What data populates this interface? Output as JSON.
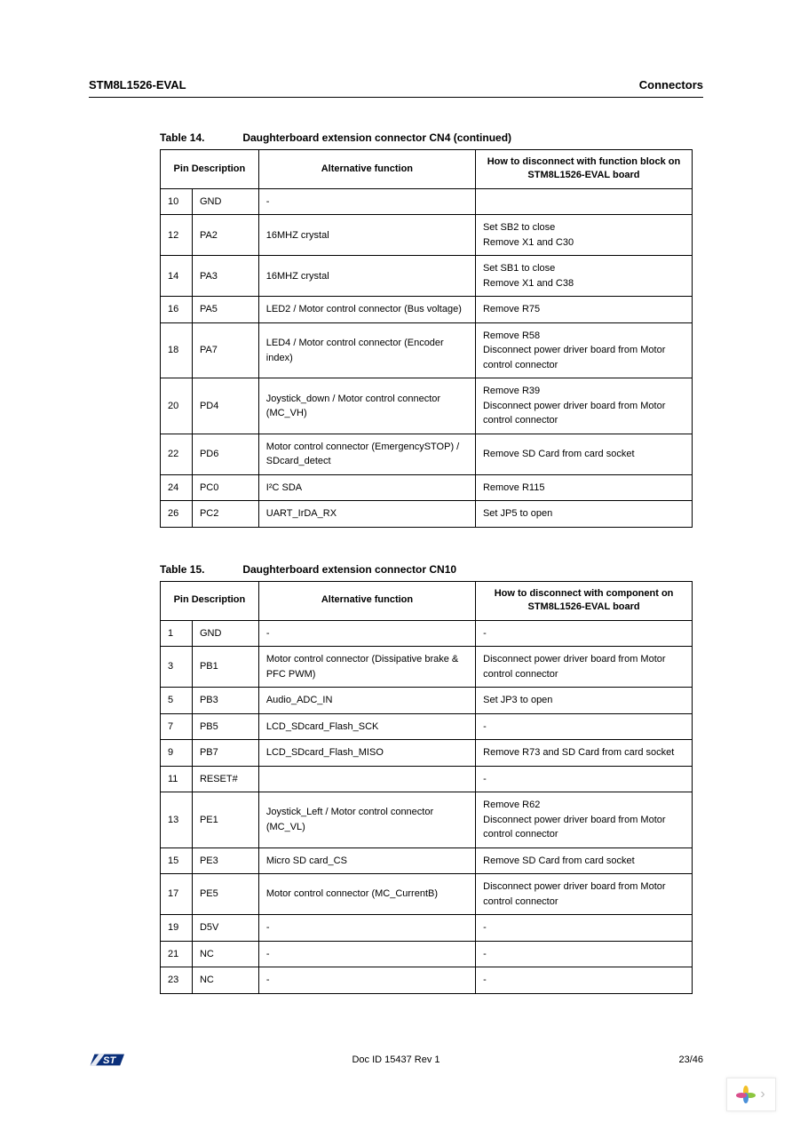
{
  "header": {
    "left": "STM8L1526-EVAL",
    "right": "Connectors"
  },
  "table14": {
    "caption_num": "Table 14.",
    "caption_title": "Daughterboard extension connector CN4 (continued)",
    "headers": {
      "pin_desc": "Pin Description",
      "alt": "Alternative    function",
      "how": "How to disconnect with function block on STM8L1526-EVAL board"
    },
    "rows": [
      {
        "pin": "10",
        "desc": "GND",
        "alt": "-",
        "how": ""
      },
      {
        "pin": "12",
        "desc": "PA2",
        "alt": "16MHZ crystal",
        "how": "Set SB2 to close\nRemove X1 and C30"
      },
      {
        "pin": "14",
        "desc": "PA3",
        "alt": "16MHZ crystal",
        "how": "Set SB1 to close\nRemove X1 and C38"
      },
      {
        "pin": "16",
        "desc": "PA5",
        "alt": "LED2 / Motor control connector (Bus voltage)",
        "how": "Remove R75"
      },
      {
        "pin": "18",
        "desc": "PA7",
        "alt": "LED4 / Motor control connector (Encoder index)",
        "how": "Remove R58\nDisconnect power driver board from Motor control connector"
      },
      {
        "pin": "20",
        "desc": "PD4",
        "alt": "Joystick_down / Motor control connector (MC_VH)",
        "how": "Remove R39\nDisconnect power driver board from Motor control connector"
      },
      {
        "pin": "22",
        "desc": "PD6",
        "alt": "Motor control connector (EmergencySTOP) / SDcard_detect",
        "how": "Remove SD Card from card socket"
      },
      {
        "pin": "24",
        "desc": "PC0",
        "alt": "I²C SDA",
        "how": "Remove R115"
      },
      {
        "pin": "26",
        "desc": "PC2",
        "alt": "UART_IrDA_RX",
        "how": "Set JP5 to open"
      }
    ]
  },
  "table15": {
    "caption_num": "Table 15.",
    "caption_title": "Daughterboard extension connector CN10",
    "headers": {
      "pin_desc": "Pin Description",
      "alt": "Alternative    function",
      "how": "How to disconnect with component on STM8L1526-EVAL board"
    },
    "rows": [
      {
        "pin": "1",
        "desc": "GND",
        "alt": "-",
        "how": "-"
      },
      {
        "pin": "3",
        "desc": "PB1",
        "alt": "Motor control connector (Dissipative brake & PFC PWM)",
        "how": "Disconnect power driver board from Motor control connector"
      },
      {
        "pin": "5",
        "desc": "PB3",
        "alt": "Audio_ADC_IN",
        "how": "Set JP3 to open"
      },
      {
        "pin": "7",
        "desc": "PB5",
        "alt": "LCD_SDcard_Flash_SCK",
        "how": "-"
      },
      {
        "pin": "9",
        "desc": "PB7",
        "alt": "LCD_SDcard_Flash_MISO",
        "how": "Remove R73 and SD Card from card socket"
      },
      {
        "pin": "11",
        "desc": "RESET#",
        "alt": "",
        "how": "-"
      },
      {
        "pin": "13",
        "desc": "PE1",
        "alt": "Joystick_Left / Motor control connector (MC_VL)",
        "how": "Remove R62\nDisconnect power driver board from Motor control connector"
      },
      {
        "pin": "15",
        "desc": "PE3",
        "alt": "Micro SD card_CS",
        "how": "Remove SD Card from card socket"
      },
      {
        "pin": "17",
        "desc": "PE5",
        "alt": "Motor control connector (MC_CurrentB)",
        "how": "Disconnect power driver board from Motor control connector"
      },
      {
        "pin": "19",
        "desc": "D5V",
        "alt": "-",
        "how": "-"
      },
      {
        "pin": "21",
        "desc": "NC",
        "alt": "-",
        "how": "-"
      },
      {
        "pin": "23",
        "desc": "NC",
        "alt": "-",
        "how": "-"
      }
    ]
  },
  "footer": {
    "doc_id": "Doc ID 15437 Rev 1",
    "page": "23/46"
  },
  "logo_colors": {
    "primary": "#0a2f7a",
    "accent": "#ffffff"
  },
  "badge_colors": {
    "petal1": "#f2c028",
    "petal2": "#8cc63f",
    "petal3": "#4a90d9",
    "petal4": "#d94f8c"
  }
}
